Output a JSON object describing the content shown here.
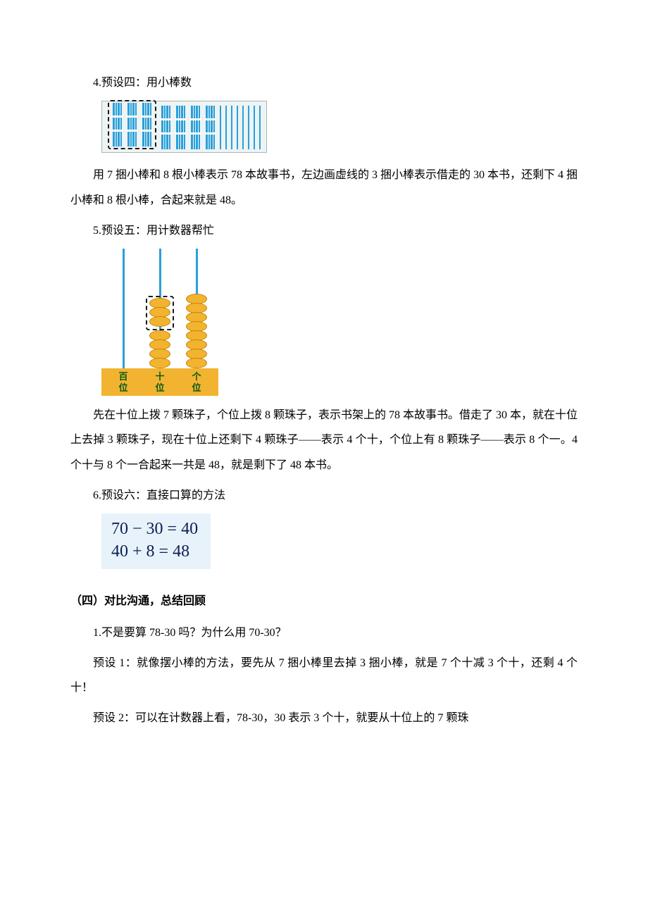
{
  "sec4": {
    "heading": "4.预设四：用小棒数",
    "sticks": {
      "dashed_bundles": 3,
      "loose_bundles": 4,
      "loose_sticks": 8,
      "sticks_per_bundle": 4,
      "stick_color": "#2aa0db",
      "bg_color": "#eef3f3",
      "border_color": "#a7b6b6",
      "dashed_border_color": "#1a1a1a"
    },
    "explain": "用 7 捆小棒和 8 根小棒表示 78 本故事书，左边画虚线的 3 捆小棒表示借走的 30 本书，还剩下 4 捆小棒和 8 根小棒，合起来就是 48。"
  },
  "sec5": {
    "heading": "5.预设五：用计数器帮忙",
    "abacus": {
      "rod_color": "#2aa0db",
      "bead_fill": "#f2b430",
      "bead_border": "#c88400",
      "base_color": "#f2b430",
      "label_color": "#075a16",
      "dashed_border_color": "#1a1a1a",
      "columns": [
        {
          "label_top": "百",
          "label_bottom": "位",
          "dashed_beads": 0,
          "beads": 0
        },
        {
          "label_top": "十",
          "label_bottom": "位",
          "dashed_beads": 3,
          "beads": 4
        },
        {
          "label_top": "个",
          "label_bottom": "位",
          "dashed_beads": 0,
          "beads": 8
        }
      ]
    },
    "explain": "先在十位上拨 7 颗珠子，个位上拨 8 颗珠子，表示书架上的 78 本故事书。借走了 30 本，就在十位上去掉 3 颗珠子，现在十位上还剩下 4 颗珠子——表示 4 个十，个位上有 8 颗珠子——表示 8 个一。4 个十与 8 个一合起来一共是 48，就是剩下了 48 本书。"
  },
  "sec6": {
    "heading": "6.预设六：直接口算的方法",
    "calc": {
      "line1": "70 − 30 = 40",
      "line2": "40 + 8 = 48",
      "bg_color": "#e8f2fa",
      "text_color": "#0e1e54",
      "font_size_pt": 24
    }
  },
  "part4": {
    "heading": "（四）对比沟通，总结回顾",
    "q1": "1.不是要算 78-30 吗？为什么用 70-30？",
    "preset1": "预设 1：就像摆小棒的方法，要先从 7 捆小棒里去掉 3 捆小棒，就是 7 个十减 3 个十，还剩 4 个十！",
    "preset2": "预设 2：可以在计数器上看，78-30，30 表示 3 个十，就要从十位上的 7 颗珠"
  }
}
